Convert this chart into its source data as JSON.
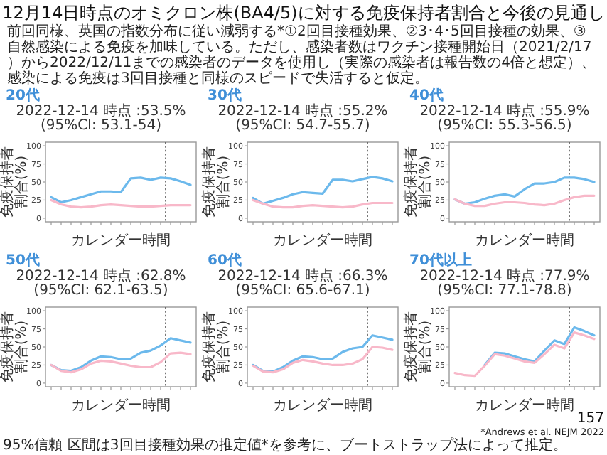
{
  "chart_data": [
    {
      "type": "line",
      "title": "20代",
      "subtitle": "2022-12-14 時点 :53.5% (95%CI: 53.1-54)",
      "xlabel": "カレンダー時間",
      "ylabel": "免疫保持者割合(%)",
      "categories": [
        null,
        null,
        null,
        null,
        null,
        null,
        null,
        null,
        null,
        null,
        null,
        null,
        null,
        null,
        null
      ],
      "ylim": [
        -5,
        105
      ],
      "yticks": [
        0,
        25,
        50,
        75,
        100
      ],
      "series": [
        {
          "color": "#6cb9ec",
          "values": [
            29,
            22,
            25,
            29,
            33,
            37,
            37,
            36,
            55,
            56,
            53,
            56,
            55,
            51,
            46
          ]
        },
        {
          "color": "#f8b8c9",
          "values": [
            25,
            19,
            16,
            15,
            16,
            18,
            19,
            18,
            17,
            16,
            16,
            17,
            18,
            18,
            18
          ]
        }
      ],
      "annotations": [
        "12月14日時点のオミクロン株(BA4/5)に対する免疫保持者割合と今後の見通し",
        "前回同様、英国の指数分布に従い減弱する*①2回目接種効果、②3･4･5回目接種の効果、③自然感染による免疫を加味している。ただし、感染者数はワクチン接種開始日（2021/2/17）から2022/12/11までの感染者のデータを使用し（実際の感染者は報告数の4倍と想定）、感染による免疫は3回目接種と同様のスピードで失活すると仮定。",
        "95%信頼 区間は3回目接種効果の推定値*を参考に、ブートストラップ法によって推定。",
        "*Andrews et al. NEJM 2022",
        "157"
      ]
    },
    {
      "type": "line",
      "title": "30代",
      "subtitle": "2022-12-14 時点 :55.2% (95%CI: 54.7-55.7)",
      "xlabel": "カレンダー時間",
      "ylabel": "免疫保持者割合(%)",
      "categories": [
        null,
        null,
        null,
        null,
        null,
        null,
        null,
        null,
        null,
        null,
        null,
        null,
        null,
        null,
        null
      ],
      "ylim": [
        -5,
        105
      ],
      "yticks": [
        0,
        25,
        50,
        75,
        100
      ],
      "series": [
        {
          "color": "#6cb9ec",
          "values": [
            28,
            20,
            24,
            28,
            33,
            36,
            35,
            34,
            53,
            53,
            51,
            54,
            57,
            55,
            51
          ]
        },
        {
          "color": "#f8b8c9",
          "values": [
            25,
            20,
            16,
            15,
            15,
            17,
            18,
            17,
            16,
            15,
            16,
            19,
            21,
            21,
            21
          ]
        }
      ]
    },
    {
      "type": "line",
      "title": "40代",
      "subtitle": "2022-12-14 時点 :55.9% (95%CI: 55.3-56.5)",
      "xlabel": "カレンダー時間",
      "ylabel": "免疫保持者割合(%)",
      "categories": [
        null,
        null,
        null,
        null,
        null,
        null,
        null,
        null,
        null,
        null,
        null,
        null,
        null,
        null,
        null
      ],
      "ylim": [
        -5,
        105
      ],
      "yticks": [
        0,
        25,
        50,
        75,
        100
      ],
      "series": [
        {
          "color": "#6cb9ec",
          "values": [
            26,
            20,
            22,
            27,
            31,
            33,
            30,
            40,
            48,
            48,
            50,
            56,
            56,
            54,
            50
          ]
        },
        {
          "color": "#f8b8c9",
          "values": [
            26,
            20,
            17,
            17,
            20,
            22,
            22,
            21,
            19,
            18,
            20,
            25,
            29,
            31,
            31
          ]
        }
      ]
    },
    {
      "type": "line",
      "title": "50代",
      "subtitle": "2022-12-14 時点 :62.8% (95%CI: 62.1-63.5)",
      "xlabel": "カレンダー時間",
      "ylabel": "免疫保持者割合(%)",
      "categories": [
        null,
        null,
        null,
        null,
        null,
        null,
        null,
        null,
        null,
        null,
        null,
        null,
        null,
        null,
        null
      ],
      "ylim": [
        -5,
        105
      ],
      "yticks": [
        0,
        25,
        50,
        75,
        100
      ],
      "series": [
        {
          "color": "#6cb9ec",
          "values": [
            25,
            18,
            17,
            22,
            31,
            37,
            36,
            33,
            34,
            42,
            45,
            52,
            62,
            59,
            56
          ]
        },
        {
          "color": "#f8b8c9",
          "values": [
            25,
            17,
            15,
            19,
            27,
            31,
            30,
            27,
            24,
            22,
            22,
            29,
            41,
            42,
            40
          ]
        }
      ]
    },
    {
      "type": "line",
      "title": "60代",
      "subtitle": "2022-12-14 時点 :66.3% (95%CI: 65.6-67.1)",
      "xlabel": "カレンダー時間",
      "ylabel": "免疫保持者割合(%)",
      "categories": [
        null,
        null,
        null,
        null,
        null,
        null,
        null,
        null,
        null,
        null,
        null,
        null,
        null,
        null,
        null
      ],
      "ylim": [
        -5,
        105
      ],
      "yticks": [
        0,
        25,
        50,
        75,
        100
      ],
      "series": [
        {
          "color": "#6cb9ec",
          "values": [
            25,
            17,
            16,
            22,
            31,
            37,
            36,
            33,
            34,
            43,
            48,
            50,
            66,
            63,
            60
          ]
        },
        {
          "color": "#f8b8c9",
          "values": [
            24,
            16,
            15,
            19,
            28,
            32,
            30,
            27,
            25,
            25,
            27,
            33,
            50,
            49,
            46
          ]
        }
      ]
    },
    {
      "type": "line",
      "title": "70代以上",
      "subtitle": "2022-12-14 時点 :77.9% (95%CI: 77.1-78.8)",
      "xlabel": "カレンダー時間",
      "ylabel": "免疫保持者割合(%)",
      "categories": [
        null,
        null,
        null,
        null,
        null,
        null,
        null,
        null,
        null,
        null,
        null,
        null,
        null,
        null,
        null
      ],
      "ylim": [
        -5,
        105
      ],
      "yticks": [
        0,
        25,
        50,
        75,
        100
      ],
      "series": [
        {
          "color": "#6cb9ec",
          "values": [
            null,
            null,
            null,
            25,
            42,
            41,
            37,
            33,
            30,
            45,
            59,
            54,
            77,
            72,
            66
          ]
        },
        {
          "color": "#f8b8c9",
          "values": [
            14,
            11,
            10,
            24,
            40,
            38,
            34,
            30,
            28,
            40,
            53,
            48,
            70,
            66,
            61
          ]
        }
      ]
    }
  ]
}
